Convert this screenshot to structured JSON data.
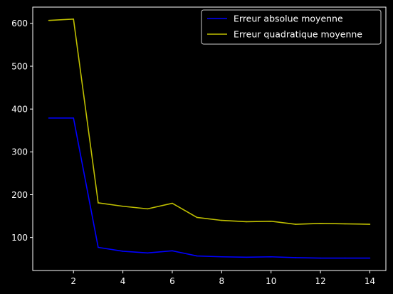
{
  "chart_data": {
    "type": "line",
    "title": "",
    "xlabel": "",
    "ylabel": "",
    "x": [
      1,
      2,
      3,
      4,
      5,
      6,
      7,
      8,
      9,
      10,
      11,
      12,
      13,
      14
    ],
    "series": [
      {
        "name": "Erreur absolue moyenne",
        "color": "#0000ff",
        "values": [
          379,
          379,
          77,
          68,
          64,
          69,
          57,
          55,
          54,
          55,
          53,
          52,
          52,
          52
        ]
      },
      {
        "name": "Erreur quadratique moyenne",
        "color": "#bfbf00",
        "values": [
          607,
          610,
          181,
          173,
          167,
          180,
          147,
          140,
          137,
          138,
          131,
          133,
          132,
          131
        ]
      }
    ],
    "xticks": [
      2,
      4,
      6,
      8,
      10,
      12,
      14
    ],
    "yticks": [
      100,
      200,
      300,
      400,
      500,
      600
    ],
    "xlim": [
      0.35,
      14.65
    ],
    "ylim": [
      23,
      638
    ],
    "grid": false,
    "legend_position": "top-right",
    "background": "#000000",
    "axis_color": "#ffffff"
  }
}
